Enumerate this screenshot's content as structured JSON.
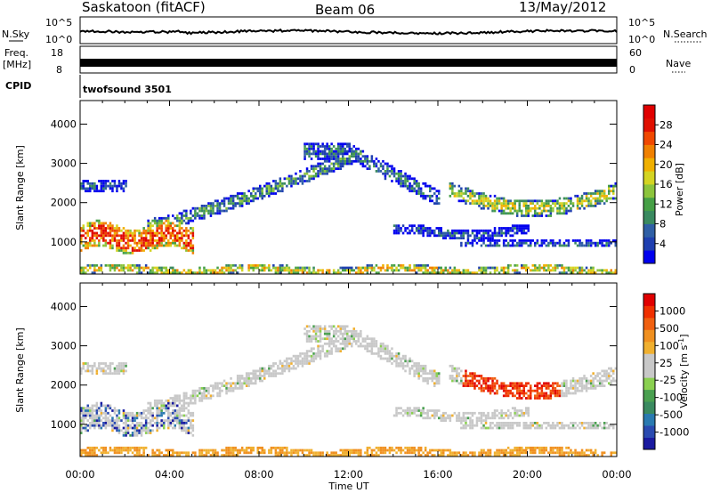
{
  "header": {
    "station": "Saskatoon (fitACF)",
    "beam": "Beam 06",
    "date": "13/May/2012"
  },
  "top_strips": {
    "nsky_label": "N.Sky",
    "nsearch_label": "N.Search",
    "nsky_ticks": [
      "10^5",
      "10^0"
    ],
    "freq_label_1": "Freq.",
    "freq_label_2": "[MHz]",
    "freq_ticks": [
      "18",
      "8"
    ],
    "nave_label": "Nave",
    "nave_ticks": [
      "60",
      "0"
    ],
    "cpid_label": "CPID",
    "cpid_value": "twofsound 3501"
  },
  "chart_data": [
    {
      "type": "heatmap",
      "name": "power-panel",
      "ylabel": "Slant Range [km]",
      "ylim": [
        180,
        4600
      ],
      "yticks": [
        "1000",
        "2000",
        "3000",
        "4000"
      ],
      "xlim_hours": [
        0,
        24
      ],
      "xticks": [
        "00:00",
        "04:00",
        "08:00",
        "12:00",
        "16:00",
        "20:00",
        "00:00"
      ],
      "colorbar": {
        "label": "Power [dB]",
        "ticks": [
          "4",
          "8",
          "12",
          "16",
          "20",
          "24",
          "28"
        ],
        "colors": [
          "#0000ee",
          "#1f3fb0",
          "#2f5fa5",
          "#3a8a60",
          "#46a046",
          "#8cc43c",
          "#d4d422",
          "#f0b000",
          "#f08000",
          "#f04800",
          "#e01000",
          "#e00000"
        ]
      }
    },
    {
      "type": "heatmap",
      "name": "velocity-panel",
      "ylabel": "Slant Range [km]",
      "ylim": [
        180,
        4600
      ],
      "yticks": [
        "1000",
        "2000",
        "3000",
        "4000"
      ],
      "xlim_hours": [
        0,
        24
      ],
      "xticks": [
        "00:00",
        "04:00",
        "08:00",
        "12:00",
        "16:00",
        "20:00",
        "00:00"
      ],
      "xlabel": "Time UT",
      "colorbar": {
        "label": "Velocity [m s",
        "label_sup": "-1",
        "label_end": "]",
        "ticks": [
          "1000",
          "500",
          "100",
          "25",
          "-25",
          "-100",
          "-500",
          "-1000"
        ],
        "colors": [
          "#1a1aa0",
          "#2a4ab0",
          "#2a7ab0",
          "#3a8a60",
          "#4aa050",
          "#8ad050",
          "#c8c8c8",
          "#c8c8c8",
          "#f0b030",
          "#f09020",
          "#f06010",
          "#f03000",
          "#e00000"
        ]
      }
    }
  ]
}
